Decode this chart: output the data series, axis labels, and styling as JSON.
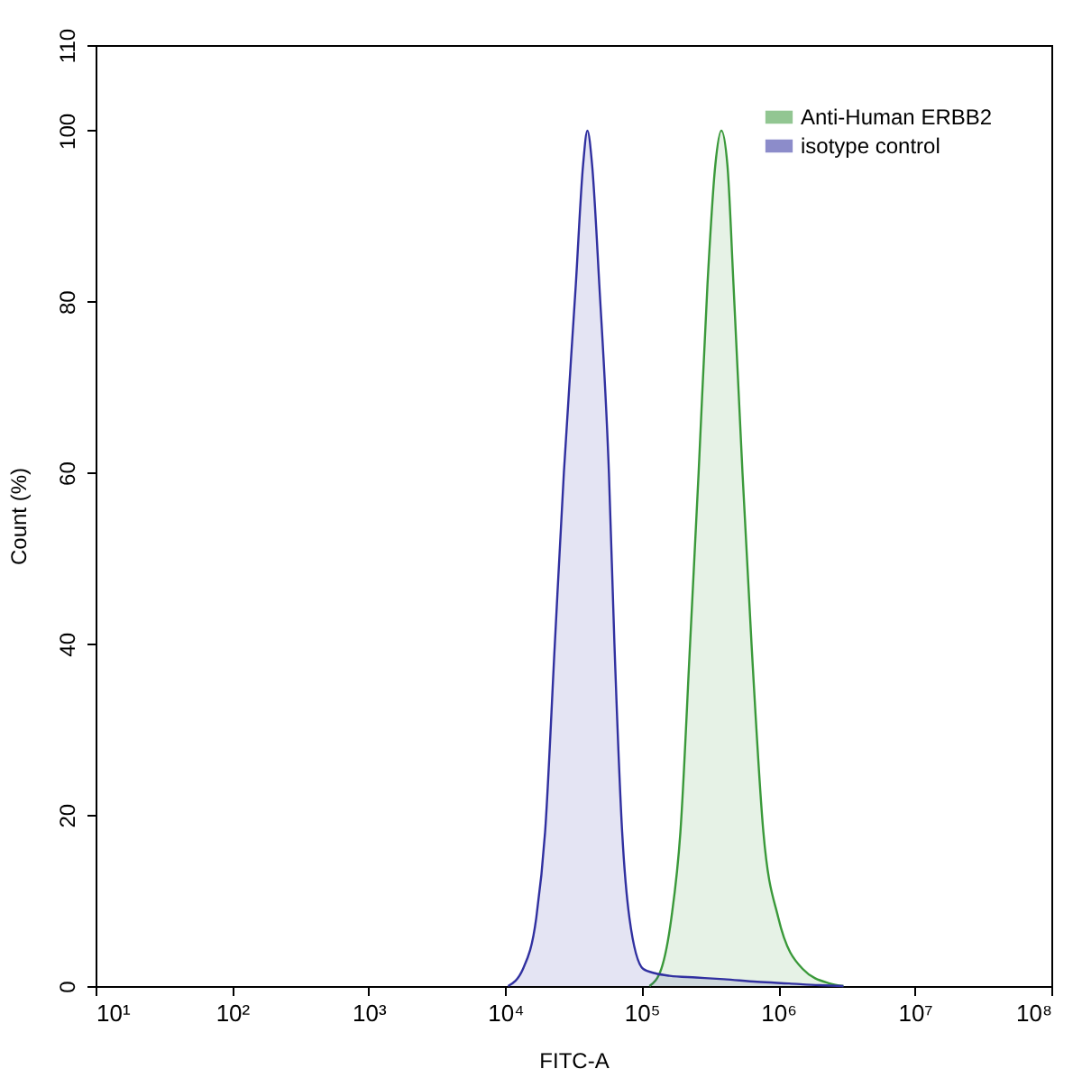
{
  "chart_data": {
    "type": "area",
    "xlabel": "FITC-A",
    "ylabel": "Count (%)",
    "log": "x",
    "xlim": [
      10,
      100000000
    ],
    "xticks": [
      {
        "value": 10,
        "label": "10¹"
      },
      {
        "value": 100,
        "label": "10²"
      },
      {
        "value": 1000,
        "label": "10³"
      },
      {
        "value": 10000,
        "label": "10⁴"
      },
      {
        "value": 100000,
        "label": "10⁵"
      },
      {
        "value": 1000000,
        "label": "10⁶"
      },
      {
        "value": 10000000,
        "label": "10⁷"
      },
      {
        "value": 100000000,
        "label": "10⁸"
      }
    ],
    "ylim": [
      0,
      110
    ],
    "yticks": [
      0,
      20,
      40,
      60,
      80,
      100,
      110
    ],
    "grid": false,
    "legend": "top right",
    "series": [
      {
        "name": "Anti-Human ERBB2",
        "color": "#3a993a",
        "x": [
          114000,
          139000,
          165000,
          192000,
          226000,
          261000,
          303000,
          346000,
          383000,
          424000,
          470000,
          547000,
          637000,
          778000,
          1000000,
          1510000,
          2380000,
          3000000
        ],
        "values": [
          0,
          2,
          8,
          18,
          40,
          60,
          82,
          96,
          100,
          96,
          82,
          60,
          40,
          18,
          8,
          2,
          0.3,
          0
        ]
      },
      {
        "name": "isotype control",
        "color": "#3030a0",
        "x": [
          10500,
          13500,
          16900,
          19600,
          23100,
          26900,
          32900,
          37200,
          40000,
          43300,
          48900,
          57500,
          63100,
          71900,
          81200,
          102600,
          125000,
          160000,
          250000,
          400000,
          700000,
          1200000,
          2000000,
          3000000
        ],
        "values": [
          0,
          2,
          8,
          18,
          40,
          60,
          82,
          96,
          100,
          96,
          82,
          60,
          40,
          18,
          8,
          2,
          1.5,
          1.2,
          1.0,
          0.8,
          0.5,
          0.3,
          0.1,
          0
        ]
      }
    ]
  }
}
